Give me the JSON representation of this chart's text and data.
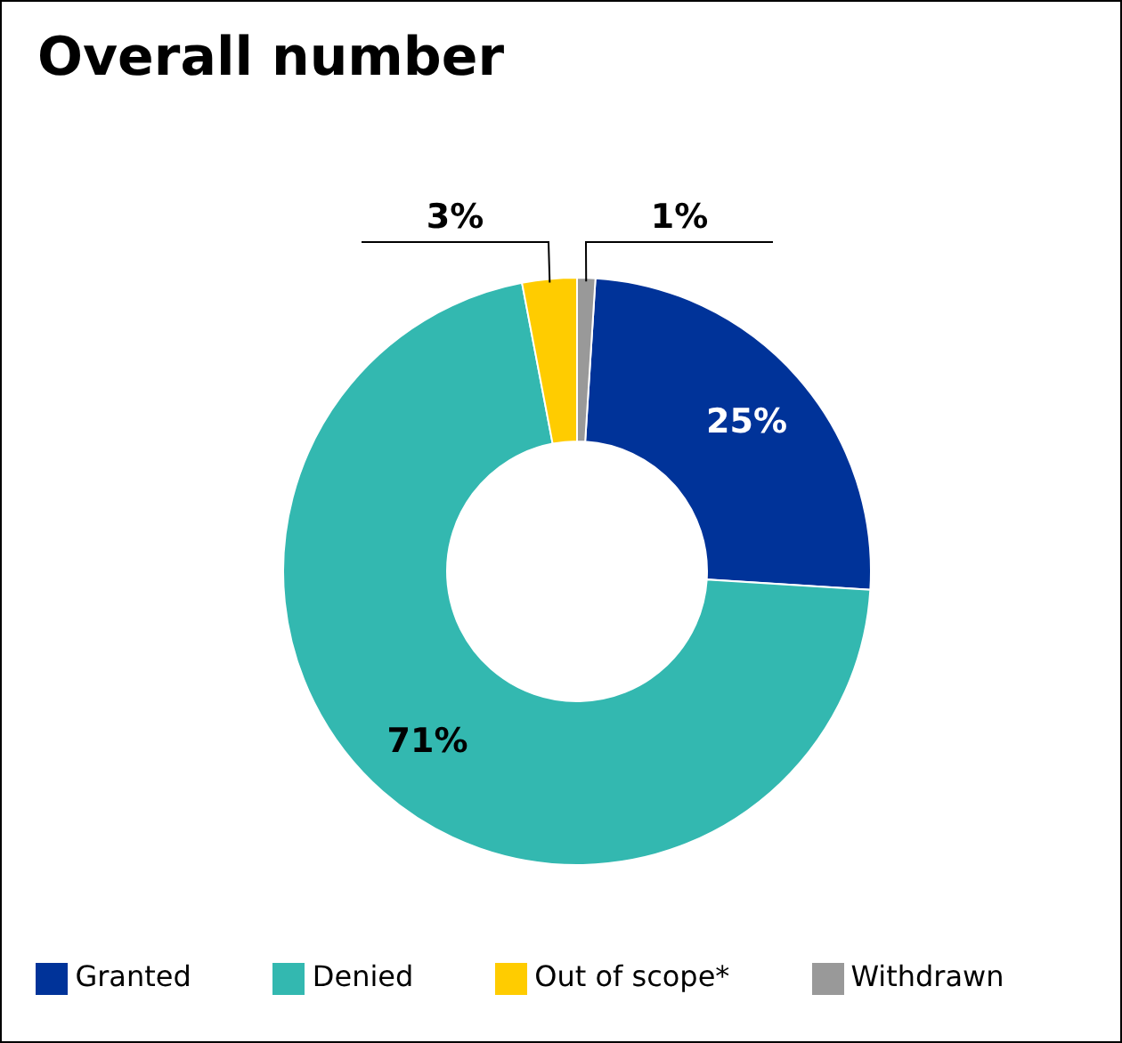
{
  "chart_data": {
    "type": "donut",
    "title": "Overall number",
    "categories": [
      "Granted",
      "Denied",
      "Out of scope*",
      "Withdrawn"
    ],
    "values": [
      25,
      71,
      3,
      1
    ],
    "colors": [
      "#003399",
      "#33b8b0",
      "#ffcc00",
      "#999999"
    ],
    "value_labels": [
      "25%",
      "71%",
      "3%",
      "1%"
    ],
    "legend": "bottom"
  }
}
